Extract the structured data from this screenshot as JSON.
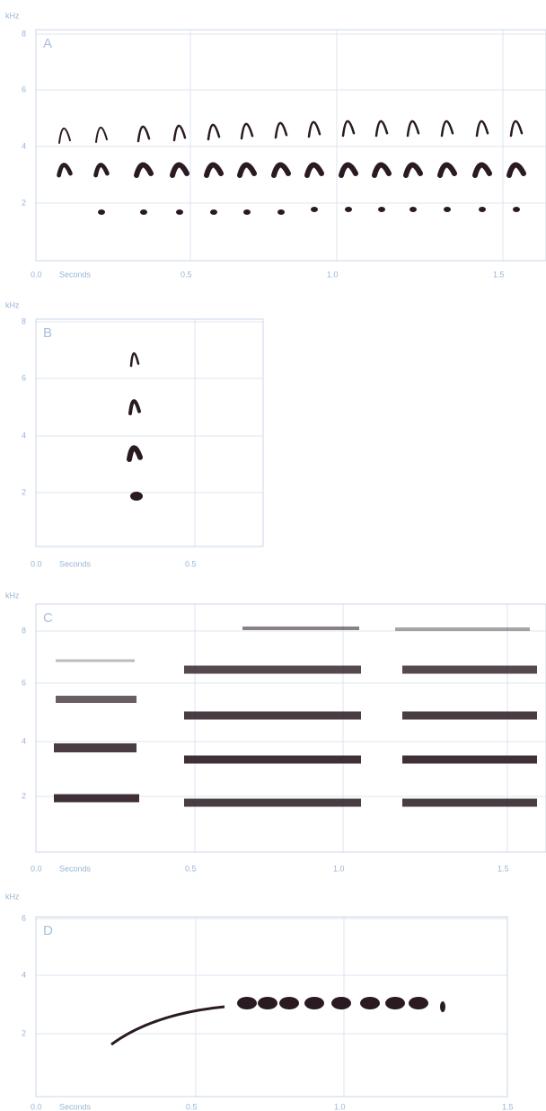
{
  "panels": [
    {
      "label": "A",
      "unit": "kHz",
      "y_ticks": [
        "8",
        "6",
        "4",
        "2"
      ],
      "x_start": "0.0",
      "x_unit": "Seconds",
      "x_ticks": [
        "0.5",
        "1.0",
        "1.5"
      ]
    },
    {
      "label": "B",
      "unit": "kHz",
      "y_ticks": [
        "8",
        "6",
        "4",
        "2"
      ],
      "x_start": "0.0",
      "x_unit": "Seconds",
      "x_ticks": [
        "0.5"
      ]
    },
    {
      "label": "C",
      "unit": "kHz",
      "y_ticks": [
        "8",
        "6",
        "4",
        "2"
      ],
      "x_start": "0.0",
      "x_unit": "Seconds",
      "x_ticks": [
        "0.5",
        "1.0",
        "1.5"
      ]
    },
    {
      "label": "D",
      "unit": "kHz",
      "y_ticks": [
        "6",
        "4",
        "2"
      ],
      "x_start": "0.0",
      "x_unit": "Seconds",
      "x_ticks": [
        "0.5",
        "1.0",
        "1.5"
      ]
    }
  ]
}
